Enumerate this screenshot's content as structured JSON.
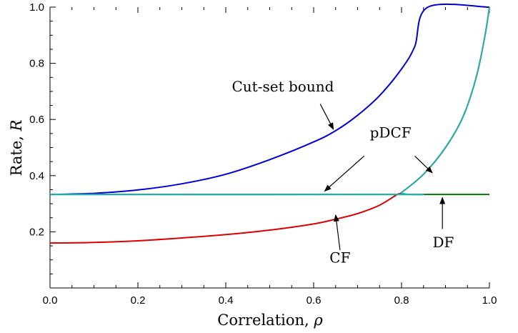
{
  "chart_data": {
    "type": "line",
    "title": "",
    "xlabel": "Correlation, ",
    "xlabel_symbol": "ρ",
    "ylabel": "Rate, ",
    "ylabel_symbol": "R",
    "xlim": [
      0,
      1
    ],
    "ylim": [
      0,
      1
    ],
    "x_ticks": [
      "0.0",
      "0.2",
      "0.4",
      "0.6",
      "0.8",
      "1.0"
    ],
    "y_ticks": [
      "0.2",
      "0.4",
      "0.6",
      "0.8",
      "1.0"
    ],
    "grid": false,
    "legend": "none",
    "series": [
      {
        "name": "Cut-set bound",
        "color": "#0000dd",
        "points": [
          [
            0,
            0.333
          ],
          [
            0.1,
            0.337
          ],
          [
            0.2,
            0.349
          ],
          [
            0.3,
            0.371
          ],
          [
            0.4,
            0.405
          ],
          [
            0.5,
            0.457
          ],
          [
            0.6,
            0.52
          ],
          [
            0.65,
            0.56
          ],
          [
            0.7,
            0.615
          ],
          [
            0.75,
            0.685
          ],
          [
            0.8,
            0.78
          ],
          [
            0.83,
            0.86
          ],
          [
            0.86,
            1.0
          ],
          [
            1.0,
            1.0
          ]
        ]
      },
      {
        "name": "pDCF",
        "color": "#20b2b2",
        "points": [
          [
            0,
            0.333
          ],
          [
            0.79,
            0.333
          ],
          [
            0.8,
            0.34
          ],
          [
            0.85,
            0.405
          ],
          [
            0.9,
            0.5
          ],
          [
            0.94,
            0.61
          ],
          [
            0.97,
            0.75
          ],
          [
            0.99,
            0.9
          ],
          [
            1.0,
            1.0
          ]
        ]
      },
      {
        "name": "CF",
        "color": "#dd0000",
        "points": [
          [
            0,
            0.16
          ],
          [
            0.1,
            0.162
          ],
          [
            0.2,
            0.168
          ],
          [
            0.3,
            0.178
          ],
          [
            0.4,
            0.19
          ],
          [
            0.5,
            0.206
          ],
          [
            0.6,
            0.228
          ],
          [
            0.65,
            0.245
          ],
          [
            0.7,
            0.265
          ],
          [
            0.75,
            0.295
          ],
          [
            0.79,
            0.333
          ],
          [
            0.8,
            0.34
          ],
          [
            0.85,
            0.405
          ],
          [
            0.9,
            0.5
          ],
          [
            0.94,
            0.61
          ],
          [
            0.97,
            0.75
          ],
          [
            0.99,
            0.9
          ],
          [
            1.0,
            1.0
          ]
        ]
      },
      {
        "name": "DF",
        "color": "#007700",
        "points": [
          [
            0,
            0.333
          ],
          [
            1.0,
            0.333
          ]
        ]
      }
    ],
    "annotations": [
      {
        "text": "Cut-set bound",
        "label_at": [
          0.53,
          0.7
        ],
        "arrow_from": [
          0.615,
          0.655
        ],
        "arrow_to": [
          0.645,
          0.565
        ]
      },
      {
        "text": "pDCF",
        "label_at": [
          0.775,
          0.535
        ],
        "arrow1_from": [
          0.715,
          0.47
        ],
        "arrow1_to": [
          0.625,
          0.345
        ],
        "arrow2_from": [
          0.83,
          0.47
        ],
        "arrow2_to": [
          0.87,
          0.41
        ]
      },
      {
        "text": "CF",
        "label_at": [
          0.66,
          0.09
        ],
        "arrow_from": [
          0.66,
          0.135
        ],
        "arrow_to": [
          0.65,
          0.26
        ]
      },
      {
        "text": "DF",
        "label_at": [
          0.895,
          0.145
        ],
        "arrow_from": [
          0.893,
          0.21
        ],
        "arrow_to": [
          0.893,
          0.322
        ]
      }
    ]
  }
}
